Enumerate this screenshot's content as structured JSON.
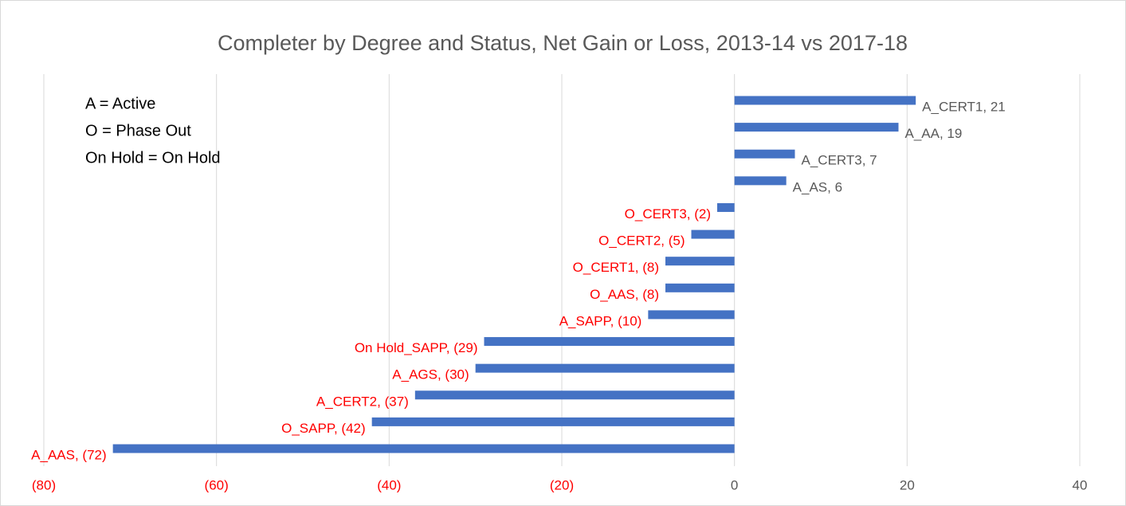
{
  "chart_data": {
    "type": "hbar",
    "title": "Completer by Degree and Status, Net Gain or Loss, 2013-14 vs 2017-18",
    "annotations": [
      "A = Active",
      "O = Phase Out",
      "On Hold = On Hold"
    ],
    "categories": [
      "A_CERT1",
      "A_AA",
      "A_CERT3",
      "A_AS",
      "O_CERT3",
      "O_CERT2",
      "O_CERT1",
      "O_AAS",
      "A_SAPP",
      "On Hold_SAPP",
      "A_AGS",
      "A_CERT2",
      "O_SAPP",
      "A_AAS"
    ],
    "values": [
      21,
      19,
      7,
      6,
      -2,
      -5,
      -8,
      -8,
      -10,
      -29,
      -30,
      -37,
      -42,
      -72
    ],
    "value_labels": [
      "A_CERT1, 21",
      "A_AA, 19",
      "A_CERT3, 7",
      "A_AS, 6",
      "O_CERT3, (2)",
      "O_CERT2, (5)",
      "O_CERT1, (8)",
      "O_AAS, (8)",
      "A_SAPP, (10)",
      "On Hold_SAPP, (29)",
      "A_AGS, (30)",
      "A_CERT2, (37)",
      "O_SAPP, (42)",
      "A_AAS, (72)"
    ],
    "color": "#4472c4",
    "label_color": "#595959",
    "negative_label_color": "#ff0000",
    "xlim": [
      -80,
      40
    ],
    "xticks": [
      {
        "value": -80,
        "label": "(80)"
      },
      {
        "value": -60,
        "label": "(60)"
      },
      {
        "value": -40,
        "label": "(40)"
      },
      {
        "value": -20,
        "label": "(20)"
      },
      0,
      20,
      40
    ],
    "grid": true
  }
}
